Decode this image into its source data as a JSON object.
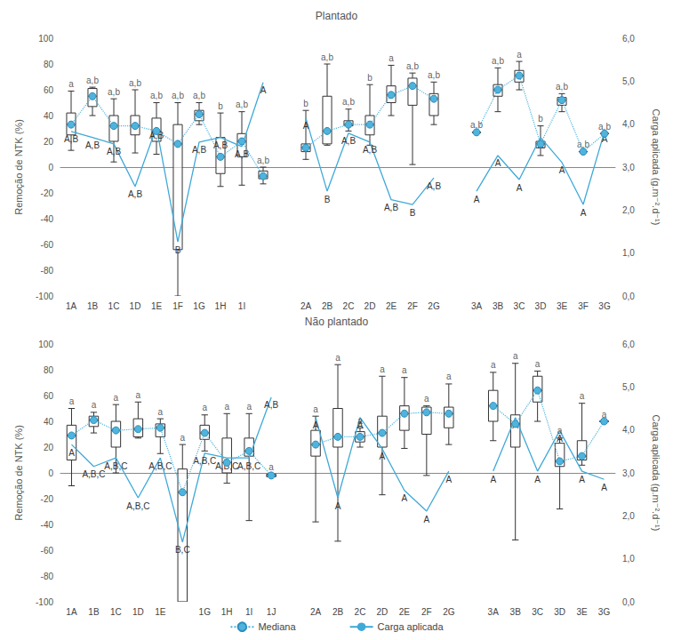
{
  "chart_data": [
    {
      "type": "boxplot",
      "title": "Plantado",
      "ylabel": "Remoção de NTK (%)",
      "y2label": "Carga aplicada (g.m⁻².d⁻¹)",
      "ylim": [
        -100,
        100
      ],
      "yticks": [
        -100,
        -80,
        -60,
        -40,
        -20,
        0,
        20,
        40,
        60,
        80,
        100
      ],
      "y2lim": [
        0,
        6
      ],
      "y2ticks": [
        {
          "value": 0,
          "label": "0,0"
        },
        {
          "value": 1,
          "label": "1,0"
        },
        {
          "value": 2,
          "label": "2,0"
        },
        {
          "value": 3,
          "label": "3,0"
        },
        {
          "value": 4,
          "label": "4,0"
        },
        {
          "value": 5,
          "label": "5,0"
        },
        {
          "value": 6,
          "label": "6,0"
        }
      ],
      "grid": false,
      "categories": [
        "1A",
        "1B",
        "1C",
        "1D",
        "1E",
        "1F",
        "1G",
        "1H",
        "1I",
        null,
        null,
        "2A",
        "2B",
        "2C",
        "2D",
        "2E",
        "2F",
        "2G",
        null,
        "3A",
        "3B",
        "3C",
        "3D",
        "3E",
        "3F",
        "3G"
      ],
      "boxes": [
        [
          13,
          25,
          33,
          42,
          59
        ],
        [
          40,
          47,
          55,
          61,
          62
        ],
        [
          4,
          20,
          32,
          40,
          53
        ],
        [
          11,
          25,
          32,
          40,
          60
        ],
        [
          10,
          20,
          28,
          38,
          50
        ],
        [
          -100,
          -64,
          18,
          33,
          50
        ],
        [
          33,
          36,
          41,
          44,
          50
        ],
        [
          -15,
          -5,
          8,
          23,
          42
        ],
        [
          -14,
          8,
          20,
          26,
          43
        ],
        [
          -13,
          -9,
          -7,
          -3,
          0
        ],
        null,
        [
          6,
          12,
          15,
          18,
          44
        ],
        [
          17,
          18,
          28,
          55,
          80
        ],
        [
          28,
          32,
          33,
          36,
          45
        ],
        [
          17,
          25,
          33,
          40,
          64
        ],
        [
          40,
          50,
          56,
          63,
          79
        ],
        [
          2,
          48,
          63,
          69,
          73
        ],
        [
          33,
          40,
          53,
          57,
          66
        ],
        null,
        [
          27,
          27,
          27,
          27,
          27
        ],
        [
          43,
          55,
          60,
          64,
          77
        ],
        [
          60,
          66,
          71,
          75,
          82
        ],
        [
          9,
          15,
          18,
          20,
          32
        ],
        [
          43,
          48,
          52,
          54,
          57
        ],
        [
          12,
          12,
          12,
          12,
          12
        ],
        [
          26,
          26,
          26,
          26,
          26
        ]
      ],
      "box_letters": [
        "a",
        "a,b",
        "a,b",
        "a,b",
        "a,b",
        "a,b",
        "a,b",
        "b",
        "a,b",
        "a,b",
        null,
        "b",
        "a,b",
        "a,b",
        "b",
        "a",
        "a,b",
        "a,b",
        null,
        "a,b",
        "a,b",
        "a",
        "b",
        "a,b",
        "a,b",
        "a,b"
      ],
      "series": [
        {
          "name": "Mediana",
          "type": "line",
          "color": "#4fb3dc",
          "marker": "circle",
          "line_style": "dotted",
          "values": [
            33,
            55,
            32,
            32,
            28,
            18,
            41,
            8,
            20,
            -7,
            null,
            15,
            28,
            33,
            33,
            56,
            63,
            53,
            null,
            27,
            60,
            71,
            18,
            52,
            12,
            26
          ]
        },
        {
          "name": "Carga aplicada",
          "type": "line",
          "axis": "y2",
          "color": "#3fa9d8",
          "line_style": "solid",
          "values": [
            3.83,
            3.69,
            3.54,
            2.55,
            3.93,
            1.26,
            3.58,
            3.69,
            3.48,
            4.97,
            null,
            4.14,
            2.44,
            3.79,
            3.58,
            2.24,
            2.13,
            2.75,
            null,
            2.44,
            3.27,
            2.71,
            3.69,
            3.11,
            2.13,
            3.83
          ],
          "point_labels": [
            "A,B",
            "A,B",
            "A,B",
            "A,B",
            "A,B",
            "B",
            "A,B",
            "A,B",
            "A,B",
            "A",
            null,
            "A",
            "B",
            "A,B",
            "A,B",
            "A,B",
            "B",
            "A,B",
            null,
            "A",
            "A",
            "A",
            "A",
            "A",
            "A",
            "A"
          ]
        }
      ]
    },
    {
      "type": "boxplot",
      "title": "Não plantado",
      "ylabel": "Remoção de NTK (%)",
      "y2label": "Carga aplicada (g.m⁻².d⁻¹)",
      "ylim": [
        -100,
        100
      ],
      "yticks": [
        -100,
        -80,
        -60,
        -40,
        -20,
        0,
        20,
        40,
        60,
        80,
        100
      ],
      "y2lim": [
        0,
        6
      ],
      "y2ticks": [
        {
          "value": 0,
          "label": "0,0"
        },
        {
          "value": 1,
          "label": "1,0"
        },
        {
          "value": 2,
          "label": "2,0"
        },
        {
          "value": 3,
          "label": "3,0"
        },
        {
          "value": 4,
          "label": "4,0"
        },
        {
          "value": 5,
          "label": "5,0"
        },
        {
          "value": 6,
          "label": "6,0"
        }
      ],
      "grid": false,
      "legend": "bottom",
      "categories": [
        "1A",
        "1B",
        "1C",
        "1D",
        "1E",
        null,
        "1G",
        "1H",
        "1I",
        "1J",
        null,
        "2A",
        "2B",
        "2C",
        "2D",
        "2E",
        "2F",
        "2G",
        null,
        "3A",
        "3B",
        "3C",
        "3D",
        "3E",
        "3G"
      ],
      "boxes": [
        [
          -10,
          10,
          29,
          37,
          50
        ],
        [
          31,
          36,
          41,
          44,
          47
        ],
        [
          0,
          20,
          33,
          40,
          53
        ],
        [
          27,
          28,
          34,
          42,
          55
        ],
        [
          15,
          28,
          35,
          38,
          42
        ],
        [
          -100,
          -100,
          -15,
          3,
          22
        ],
        [
          17,
          26,
          31,
          37,
          45
        ],
        [
          -8,
          0,
          8,
          27,
          46
        ],
        [
          -37,
          13,
          17,
          27,
          46
        ],
        [
          -3,
          -3,
          -2,
          -1,
          -1
        ],
        null,
        [
          -38,
          13,
          22,
          33,
          44
        ],
        [
          -53,
          20,
          28,
          50,
          84
        ],
        [
          20,
          24,
          28,
          32,
          35
        ],
        [
          -17,
          20,
          31,
          44,
          75
        ],
        [
          19,
          33,
          46,
          52,
          74
        ],
        [
          -2,
          30,
          47,
          51,
          52
        ],
        [
          22,
          35,
          46,
          51,
          69
        ],
        null,
        [
          25,
          40,
          52,
          64,
          78
        ],
        [
          -52,
          20,
          38,
          45,
          85
        ],
        [
          40,
          55,
          64,
          75,
          79
        ],
        [
          -28,
          5,
          9,
          23,
          27
        ],
        [
          6,
          10,
          13,
          25,
          54
        ],
        [
          40,
          40,
          40,
          40,
          40
        ]
      ],
      "box_letters": [
        "a",
        "a",
        "a",
        "a",
        "a",
        "a",
        "a",
        "a",
        "a",
        "a",
        null,
        "a",
        "a",
        "a",
        "a",
        "a",
        "a",
        "a",
        null,
        "a",
        "a",
        "a",
        "a",
        "a",
        "a"
      ],
      "series": [
        {
          "name": "Mediana",
          "type": "line",
          "color": "#4fb3dc",
          "marker": "circle",
          "line_style": "dotted",
          "values": [
            29,
            41,
            33,
            34,
            35,
            -15,
            31,
            8,
            17,
            -2,
            null,
            22,
            28,
            28,
            31,
            46,
            47,
            46,
            null,
            52,
            38,
            64,
            9,
            13,
            40
          ]
        },
        {
          "name": "Carga aplicada",
          "type": "line",
          "axis": "y2",
          "color": "#3fa9d8",
          "line_style": "solid",
          "values": [
            3.66,
            3.15,
            3.35,
            2.42,
            3.35,
            1.39,
            3.46,
            3.35,
            3.35,
            4.76,
            null,
            4.29,
            2.42,
            4.29,
            3.56,
            2.59,
            2.11,
            3.04,
            null,
            3.04,
            4.29,
            3.04,
            3.98,
            3.04,
            2.85
          ],
          "point_labels": [
            "A",
            "A,B,C",
            "A,B,C",
            "A,B,C",
            "A,B,C",
            "B,C",
            "A,B,C",
            "A,B,C",
            "A,B,C",
            "A,B",
            null,
            "A",
            "A",
            "A",
            "A",
            "A",
            "A",
            "A",
            null,
            "A",
            "A",
            "A",
            "A",
            "A",
            "A"
          ]
        }
      ]
    }
  ]
}
